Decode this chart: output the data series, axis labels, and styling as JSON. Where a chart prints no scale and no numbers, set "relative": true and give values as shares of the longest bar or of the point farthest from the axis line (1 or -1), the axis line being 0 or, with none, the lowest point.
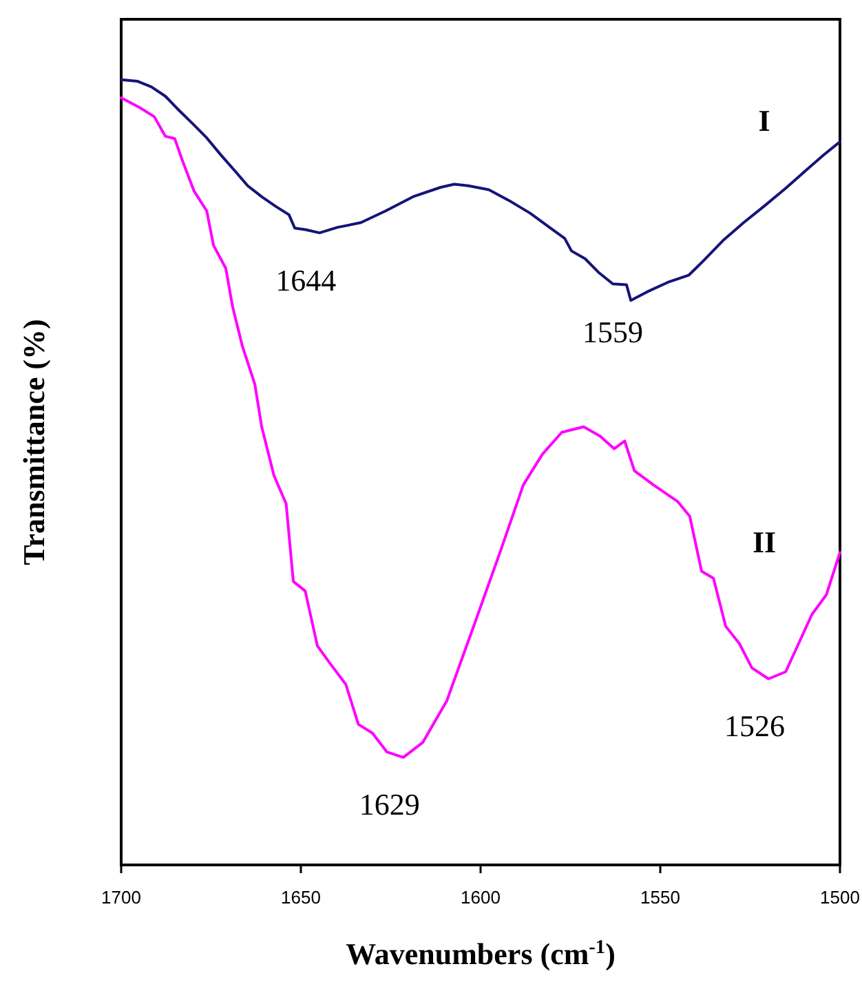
{
  "chart_data": {
    "type": "line",
    "relative": true,
    "xlabel": "Wavenumbers (cm$^{-1}$)",
    "ylabel": "Transmittance (%)",
    "xlim": [
      1700,
      1500
    ],
    "xticks": [
      1700,
      1650,
      1600,
      1550,
      1500
    ],
    "marker": "none",
    "line_style": "solid",
    "series": [
      {
        "name": "I",
        "color": "#141478",
        "x": [
          1700,
          1695.4,
          1691.6,
          1687.7,
          1683.9,
          1680.1,
          1676.2,
          1672.4,
          1667.8,
          1664.8,
          1660.9,
          1657.1,
          1653.3,
          1651.7,
          1648.7,
          1644.8,
          1639.8,
          1633.3,
          1626.4,
          1618.8,
          1611.1,
          1607.3,
          1603.4,
          1597.7,
          1592.0,
          1586.2,
          1580.5,
          1576.6,
          1574.7,
          1570.9,
          1567.0,
          1563.2,
          1559.4,
          1558.2,
          1553.6,
          1547.9,
          1542.1,
          1538.3,
          1532.6,
          1526.8,
          1521.1,
          1515.3,
          1509.6,
          1504.6,
          1500
        ],
        "values": [
          1.0,
          0.998,
          0.991,
          0.979,
          0.961,
          0.944,
          0.926,
          0.905,
          0.881,
          0.865,
          0.851,
          0.839,
          0.828,
          0.811,
          0.809,
          0.805,
          0.812,
          0.818,
          0.833,
          0.851,
          0.863,
          0.867,
          0.865,
          0.86,
          0.846,
          0.83,
          0.811,
          0.798,
          0.782,
          0.772,
          0.754,
          0.74,
          0.739,
          0.719,
          0.73,
          0.742,
          0.751,
          0.768,
          0.795,
          0.818,
          0.839,
          0.861,
          0.884,
          0.904,
          0.921
        ]
      },
      {
        "name": "II",
        "color": "#ff00ff",
        "x": [
          1700,
          1695.0,
          1690.8,
          1687.7,
          1685.1,
          1682.8,
          1679.7,
          1676.2,
          1674.3,
          1670.9,
          1669.0,
          1666.3,
          1662.8,
          1660.9,
          1657.5,
          1654.1,
          1652.1,
          1648.8,
          1645.4,
          1642.1,
          1637.5,
          1634.0,
          1630.1,
          1626.1,
          1621.5,
          1616.1,
          1609.4,
          1601.3,
          1594.6,
          1588.1,
          1582.8,
          1577.4,
          1571.3,
          1566.7,
          1562.8,
          1559.9,
          1557.2,
          1551.9,
          1545.2,
          1541.8,
          1538.5,
          1535.2,
          1531.8,
          1528.0,
          1524.5,
          1519.9,
          1515.1,
          1507.8,
          1503.8,
          1500
        ],
        "values": [
          0.977,
          0.965,
          0.953,
          0.928,
          0.925,
          0.895,
          0.858,
          0.833,
          0.789,
          0.76,
          0.711,
          0.661,
          0.612,
          0.558,
          0.496,
          0.46,
          0.361,
          0.349,
          0.279,
          0.258,
          0.23,
          0.179,
          0.168,
          0.144,
          0.137,
          0.156,
          0.209,
          0.312,
          0.398,
          0.484,
          0.523,
          0.551,
          0.558,
          0.546,
          0.53,
          0.54,
          0.502,
          0.484,
          0.463,
          0.444,
          0.374,
          0.365,
          0.304,
          0.282,
          0.251,
          0.237,
          0.246,
          0.319,
          0.344,
          0.398
        ]
      }
    ],
    "annotations": [
      {
        "text": "1644",
        "x": 1644.8,
        "y": 0.805
      },
      {
        "text": "1559",
        "x": 1559.4,
        "y": 0.739
      },
      {
        "text": "1629",
        "x": 1621.5,
        "y": 0.137
      },
      {
        "text": "1526",
        "x": 1519.9,
        "y": 0.237
      }
    ]
  }
}
